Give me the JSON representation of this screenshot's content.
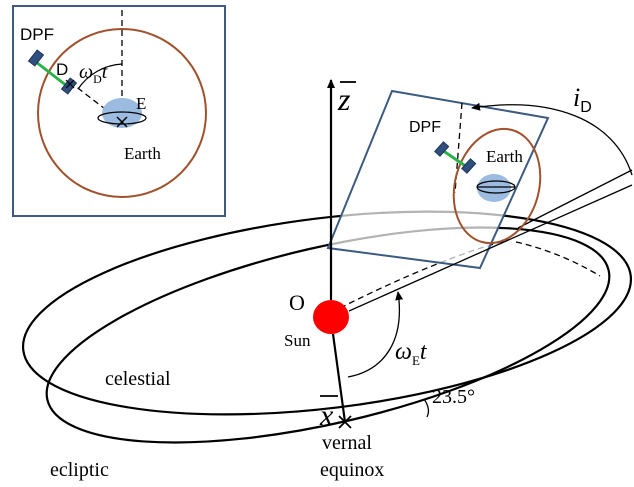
{
  "colors": {
    "frame": "#3d5a80",
    "orbit": "#a0522d",
    "earth": "#9bbbe0",
    "sun": "#ff0000",
    "satellite": "#2f4f7f",
    "tether": "#2bb34a",
    "line": "#000000"
  },
  "inset": {
    "dpf": "DPF",
    "d": "D",
    "angle_omega": "ω",
    "angle_sub": "D",
    "angle_t": "t",
    "e": "E",
    "earth": "Earth"
  },
  "main": {
    "z_axis": "z",
    "x_axis": "x",
    "origin": "O",
    "sun": "Sun",
    "omega_e": "ω",
    "omega_e_sub": "E",
    "omega_e_t": "t",
    "celestial": "celestial",
    "ecliptic": "ecliptic",
    "tilt": "23.5°",
    "vernal": "vernal",
    "equinox": "equinox",
    "dpf": "DPF",
    "earth": "Earth",
    "inclination": "i",
    "inclination_sub": "D"
  }
}
